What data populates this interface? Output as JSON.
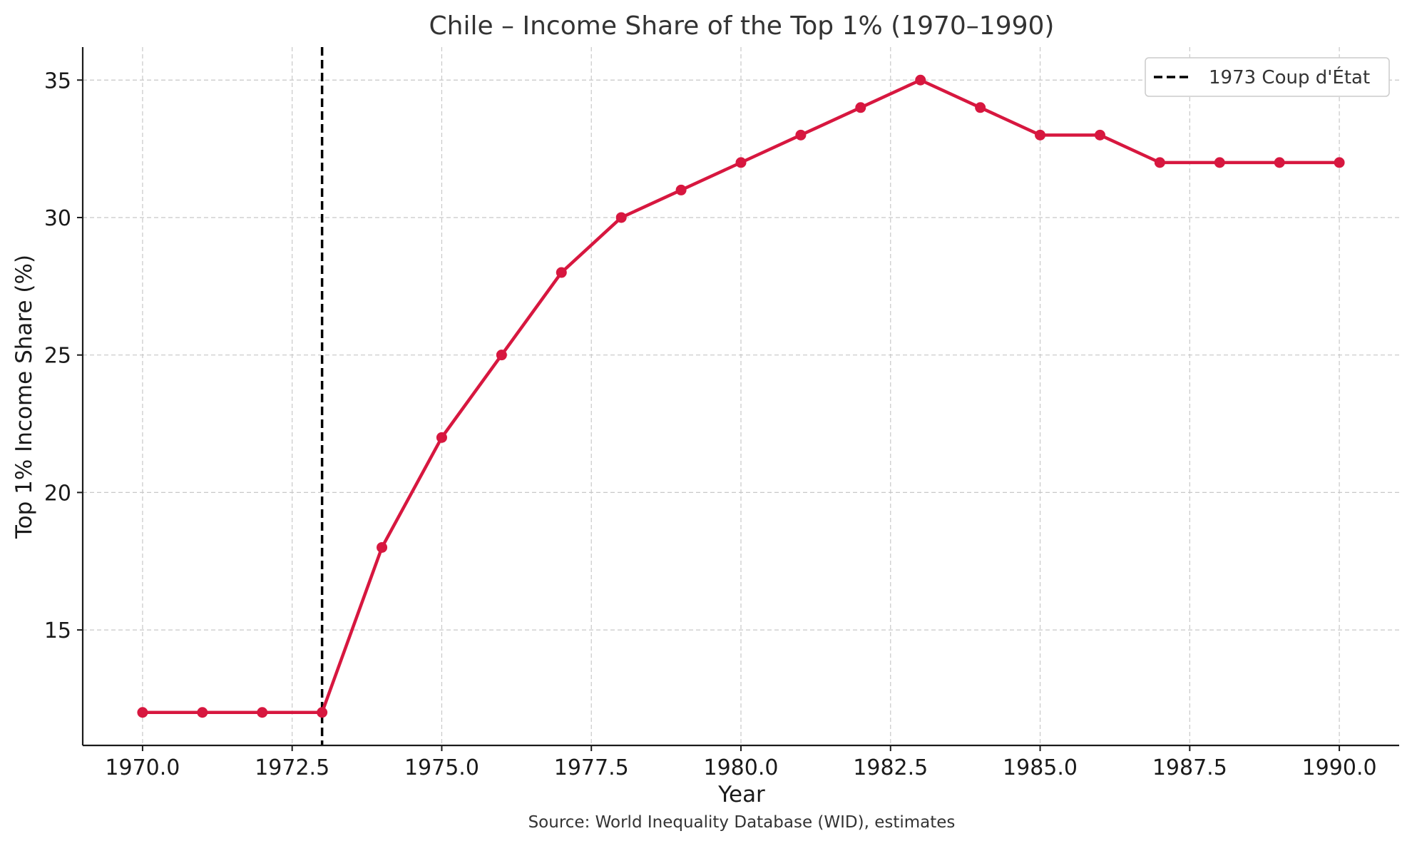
{
  "chart_data": {
    "type": "line",
    "title": "Chile – Income Share of the Top 1% (1970–1990)",
    "xlabel": "Year",
    "ylabel": "Top 1% Income Share (%)",
    "source_note": "Source: World Inequality Database (WID), estimates",
    "xlim": [
      1969,
      1991
    ],
    "ylim": [
      10.8,
      36.2
    ],
    "x_ticks": [
      1970.0,
      1972.5,
      1975.0,
      1977.5,
      1980.0,
      1982.5,
      1985.0,
      1987.5,
      1990.0
    ],
    "x_tick_labels": [
      "1970.0",
      "1972.5",
      "1975.0",
      "1977.5",
      "1980.0",
      "1982.5",
      "1985.0",
      "1987.5",
      "1990.0"
    ],
    "y_ticks": [
      15,
      20,
      25,
      30,
      35
    ],
    "y_tick_labels": [
      "15",
      "20",
      "25",
      "30",
      "35"
    ],
    "grid": true,
    "legend_position": "top-right",
    "series": [
      {
        "color": "#d7173f",
        "marker": "circle",
        "x": [
          1970,
          1971,
          1972,
          1973,
          1974,
          1975,
          1976,
          1977,
          1978,
          1979,
          1980,
          1981,
          1982,
          1983,
          1984,
          1985,
          1986,
          1987,
          1988,
          1989,
          1990
        ],
        "y": [
          12,
          12,
          12,
          12,
          18,
          22,
          25,
          28,
          30,
          31,
          32,
          33,
          34,
          35,
          34,
          33,
          33,
          32,
          32,
          32,
          32
        ]
      }
    ],
    "annotations": [
      {
        "type": "vline",
        "x": 1973,
        "label": "1973 Coup d'État",
        "color": "#000000",
        "style": "dashed"
      }
    ]
  }
}
